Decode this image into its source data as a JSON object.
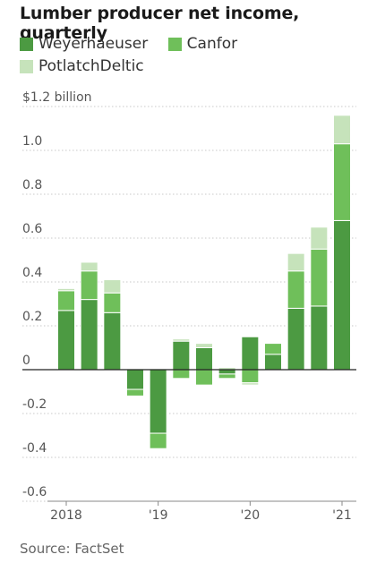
{
  "title": "Lumber producer net income, quarterly",
  "source": "Source: FactSet",
  "colors": {
    "weyerhaeuser": "#4c9a42",
    "canfor": "#6fbf5a",
    "potlatchdeltic": "#c6e3bb"
  },
  "chart_data": {
    "type": "bar",
    "stacked": true,
    "title": "Lumber producer net income, quarterly",
    "ylim": [
      -0.6,
      1.2
    ],
    "y_ticks": [
      1.2,
      1.0,
      0.8,
      0.6,
      0.4,
      0.2,
      0,
      -0.2,
      -0.4,
      -0.6
    ],
    "y_tick_labels": [
      "$1.2 billion",
      "1.0",
      "0.8",
      "0.6",
      "0.4",
      "0.2",
      "0",
      "-0.2",
      "-0.4",
      "-0.6"
    ],
    "x_tick_labels": [
      {
        "label": "2018",
        "index": 0
      },
      {
        "label": "'19",
        "index": 4
      },
      {
        "label": "'20",
        "index": 8
      },
      {
        "label": "'21",
        "index": 12
      }
    ],
    "categories": [
      "Q1 2018",
      "Q2 2018",
      "Q3 2018",
      "Q4 2018",
      "Q1 2019",
      "Q2 2019",
      "Q3 2019",
      "Q4 2019",
      "Q1 2020",
      "Q2 2020",
      "Q3 2020",
      "Q4 2020",
      "Q1 2021"
    ],
    "series": [
      {
        "name": "Weyerhaeuser",
        "color": "#4c9a42",
        "values": [
          0.27,
          0.32,
          0.26,
          -0.09,
          -0.29,
          0.13,
          0.1,
          -0.02,
          0.15,
          0.07,
          0.28,
          0.29,
          0.68
        ]
      },
      {
        "name": "Canfor",
        "color": "#6fbf5a",
        "values": [
          0.09,
          0.13,
          0.09,
          -0.03,
          -0.07,
          -0.04,
          -0.07,
          -0.02,
          -0.06,
          0.05,
          0.17,
          0.26,
          0.35
        ]
      },
      {
        "name": "PotlatchDeltic",
        "color": "#c6e3bb",
        "values": [
          0.01,
          0.04,
          0.06,
          0.0,
          0.0,
          0.01,
          0.02,
          0.01,
          -0.01,
          0.0,
          0.08,
          0.1,
          0.13
        ]
      }
    ]
  }
}
